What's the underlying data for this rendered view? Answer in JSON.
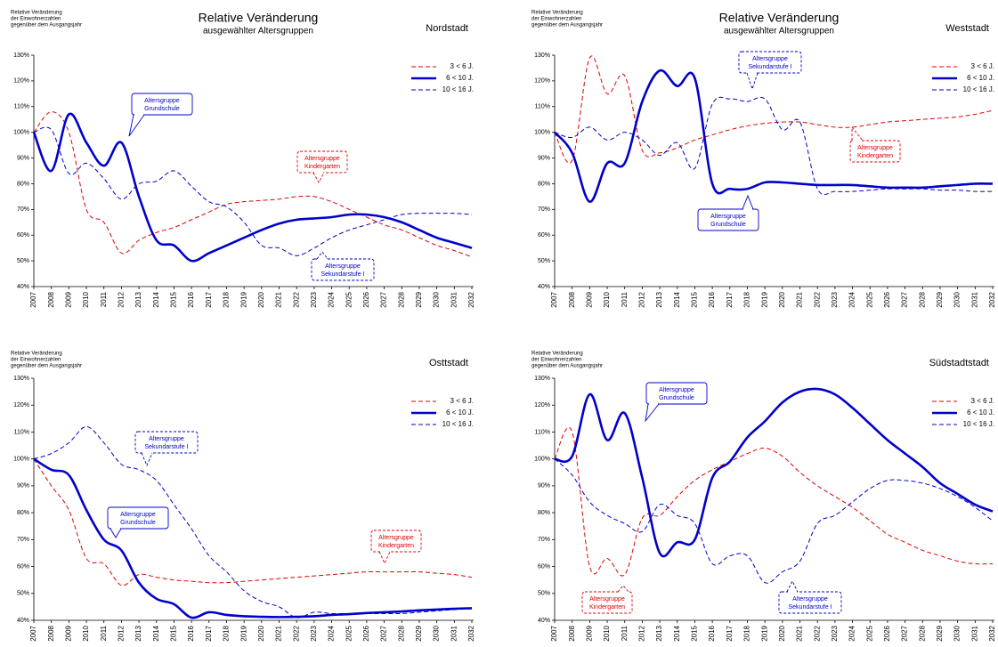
{
  "chart_data": [
    {
      "type": "line",
      "title": "Relative Veränderung",
      "subtitle": "ausgewählter Altersgruppen",
      "region": "Nordstadt",
      "y_label": [
        "Relative Veränderung",
        "der Einwohnerzahlen",
        "gegenüber dem Ausgangsjahr"
      ],
      "x": [
        2007,
        2008,
        2009,
        2010,
        2011,
        2012,
        2013,
        2014,
        2015,
        2016,
        2017,
        2018,
        2019,
        2020,
        2021,
        2022,
        2023,
        2024,
        2025,
        2026,
        2027,
        2028,
        2029,
        2030,
        2031,
        2032
      ],
      "xlim": [
        2007,
        2032
      ],
      "xticks": [
        2007,
        2008,
        2009,
        2010,
        2011,
        2012,
        2013,
        2014,
        2015,
        2016,
        2017,
        2018,
        2019,
        2020,
        2021,
        2022,
        2023,
        2024,
        2025,
        2026,
        2027,
        2028,
        2029,
        2030,
        2031,
        2032
      ],
      "ylim": [
        40,
        130
      ],
      "yticks": [
        {
          "value": 40,
          "label": "40%"
        },
        {
          "value": 50,
          "label": "50%"
        },
        {
          "value": 60,
          "label": "60%"
        },
        {
          "value": 70,
          "label": "70%"
        },
        {
          "value": 80,
          "label": "80%"
        },
        {
          "value": 90,
          "label": "90%"
        },
        {
          "value": 100,
          "label": "100%"
        },
        {
          "value": 110,
          "label": "110%"
        },
        {
          "value": 120,
          "label": "120%"
        },
        {
          "value": 130,
          "label": "130%"
        }
      ],
      "grid": false,
      "series": [
        {
          "name": "3  <  6 J.",
          "color": "#e00000",
          "style": "dashed",
          "values": [
            100,
            108,
            100,
            70,
            65,
            53,
            58,
            61,
            63,
            66,
            69,
            72,
            73,
            73.5,
            74,
            75,
            75,
            73,
            70,
            67,
            64,
            62,
            59,
            56,
            54,
            51.5
          ]
        },
        {
          "name": "6 < 10 J.",
          "color": "#0000cc",
          "style": "thick",
          "values": [
            100,
            85,
            107,
            96,
            87,
            96,
            75,
            58,
            56,
            50,
            53,
            56,
            59,
            62,
            64.5,
            66,
            66.5,
            67,
            68,
            68,
            67,
            65,
            62,
            59,
            57,
            55
          ]
        },
        {
          "name": "10 < 16 J.",
          "color": "#0000cc",
          "style": "dashed",
          "values": [
            100,
            101,
            84,
            88,
            82,
            74,
            80,
            81,
            85,
            79,
            73,
            71,
            65,
            56,
            55,
            52,
            55,
            59,
            62,
            64,
            66,
            68,
            68.5,
            68.5,
            68.5,
            68
          ]
        }
      ],
      "annotations": [
        {
          "lines": [
            "Altersgruppe",
            "Grundschule"
          ],
          "color": "#0000cc",
          "border": "solid"
        },
        {
          "lines": [
            "Altersgruppe",
            "Kindergarten"
          ],
          "color": "#e00000",
          "border": "dashed"
        },
        {
          "lines": [
            "Altersgruppe",
            "Sekundarstufe I"
          ],
          "color": "#0000cc",
          "border": "dashed"
        }
      ]
    },
    {
      "type": "line",
      "title": "Relative Veränderung",
      "subtitle": "ausgewählter Altersgruppen",
      "region": "Weststadt",
      "y_label": [
        "Relative Veränderung",
        "der Einwohnerzahlen",
        "gegenüber dem Ausgangsjahr"
      ],
      "x": [
        2007,
        2008,
        2009,
        2010,
        2011,
        2012,
        2013,
        2014,
        2015,
        2016,
        2017,
        2018,
        2019,
        2020,
        2021,
        2022,
        2023,
        2024,
        2025,
        2026,
        2027,
        2028,
        2029,
        2030,
        2031,
        2032
      ],
      "xlim": [
        2007,
        2032
      ],
      "xticks": [
        2007,
        2008,
        2009,
        2010,
        2011,
        2012,
        2013,
        2014,
        2015,
        2016,
        2017,
        2018,
        2019,
        2020,
        2021,
        2022,
        2023,
        2024,
        2025,
        2026,
        2027,
        2028,
        2029,
        2030,
        2031,
        2032
      ],
      "ylim": [
        40,
        130
      ],
      "yticks": [
        {
          "value": 40,
          "label": "40%"
        },
        {
          "value": 50,
          "label": "50%"
        },
        {
          "value": 60,
          "label": "60%"
        },
        {
          "value": 70,
          "label": "70%"
        },
        {
          "value": 80,
          "label": "80%"
        },
        {
          "value": 90,
          "label": "90%"
        },
        {
          "value": 100,
          "label": "100%"
        },
        {
          "value": 110,
          "label": "110%"
        },
        {
          "value": 120,
          "label": "120%"
        },
        {
          "value": 130,
          "label": "130%"
        }
      ],
      "grid": false,
      "series": [
        {
          "name": "3  <  6 J.",
          "color": "#e00000",
          "style": "dashed",
          "values": [
            100,
            89,
            129,
            115,
            122,
            93,
            92,
            94,
            97,
            99,
            101,
            102.5,
            103.5,
            104,
            104,
            103,
            102,
            102,
            103,
            104,
            104.5,
            105,
            105.5,
            106,
            107,
            108.5
          ]
        },
        {
          "name": "6 < 10 J.",
          "color": "#0000cc",
          "style": "thick",
          "values": [
            100,
            92,
            73,
            88,
            88,
            112,
            124,
            118,
            121,
            80,
            78,
            78,
            80.5,
            80.5,
            80,
            79.5,
            79.5,
            79.5,
            79,
            78.5,
            78.5,
            78.5,
            79,
            79.5,
            80,
            80
          ]
        },
        {
          "name": "10 < 16 J.",
          "color": "#0000cc",
          "style": "dashed",
          "values": [
            100,
            98,
            102,
            97,
            100,
            97,
            91,
            96,
            86,
            111,
            113,
            112,
            113,
            101,
            104,
            78,
            77,
            77,
            77.5,
            78,
            78,
            78,
            77.5,
            77.5,
            77,
            77
          ]
        }
      ],
      "annotations": [
        {
          "lines": [
            "Altersgruppe",
            "Sekundarstufe I"
          ],
          "color": "#0000cc",
          "border": "dashed"
        },
        {
          "lines": [
            "Altersgruppe",
            "Kindergarten"
          ],
          "color": "#e00000",
          "border": "dashed"
        },
        {
          "lines": [
            "Altersgruppe",
            "Grundschule"
          ],
          "color": "#0000cc",
          "border": "solid"
        }
      ]
    },
    {
      "type": "line",
      "region": "Osttstadt",
      "y_label": [
        "Relative Veränderung",
        "der Einwohnerzahlen",
        "gegenüber dem Ausgangsjahr"
      ],
      "x": [
        2007,
        2008,
        2009,
        2010,
        2011,
        2012,
        2013,
        2014,
        2015,
        2016,
        2017,
        2018,
        2019,
        2020,
        2021,
        2022,
        2023,
        2024,
        2025,
        2026,
        2027,
        2028,
        2029,
        2030,
        2031,
        2032
      ],
      "xlim": [
        2007,
        2032
      ],
      "xticks": [
        2007,
        2008,
        2009,
        2010,
        2011,
        2012,
        2013,
        2014,
        2015,
        2016,
        2017,
        2018,
        2019,
        2020,
        2021,
        2022,
        2023,
        2024,
        2025,
        2026,
        2027,
        2028,
        2029,
        2030,
        2031,
        2032
      ],
      "ylim": [
        40,
        130
      ],
      "yticks": [
        {
          "value": 40,
          "label": "40%"
        },
        {
          "value": 50,
          "label": "50%"
        },
        {
          "value": 60,
          "label": "60%"
        },
        {
          "value": 70,
          "label": "70%"
        },
        {
          "value": 80,
          "label": "80%"
        },
        {
          "value": 90,
          "label": "90%"
        },
        {
          "value": 100,
          "label": "100%"
        },
        {
          "value": 110,
          "label": "110%"
        },
        {
          "value": 120,
          "label": "120%"
        },
        {
          "value": 130,
          "label": "130%"
        }
      ],
      "grid": false,
      "series": [
        {
          "name": "3  <  6 J.",
          "color": "#e00000",
          "style": "dashed",
          "values": [
            100,
            90,
            81,
            63,
            61,
            53,
            57,
            56,
            55,
            54.5,
            54,
            54,
            54.5,
            55,
            55.5,
            56,
            56.5,
            57,
            57.5,
            58,
            58,
            58,
            58,
            57.5,
            57,
            56
          ]
        },
        {
          "name": "6 < 10 J.",
          "color": "#0000cc",
          "style": "thick",
          "values": [
            100,
            96,
            94,
            81,
            70,
            66,
            54,
            48,
            46,
            41,
            43,
            42,
            41.5,
            41.3,
            41.2,
            41.3,
            41.5,
            42,
            42.3,
            42.7,
            43,
            43.3,
            43.7,
            44,
            44.3,
            44.5
          ]
        },
        {
          "name": "10 < 16 J.",
          "color": "#0000cc",
          "style": "dashed",
          "values": [
            100,
            102,
            106,
            112,
            106,
            98,
            96,
            92,
            83,
            74,
            64,
            58,
            51,
            47,
            45,
            41,
            43,
            42.5,
            42.5,
            42.5,
            42.5,
            42.5,
            43,
            43.5,
            44,
            44.5
          ]
        }
      ],
      "annotations": [
        {
          "lines": [
            "Altersgruppe",
            "Sekundarstufe I"
          ],
          "color": "#0000cc",
          "border": "dashed"
        },
        {
          "lines": [
            "Altersgruppe",
            "Grundschule"
          ],
          "color": "#0000cc",
          "border": "solid"
        },
        {
          "lines": [
            "Altersgruppe",
            "Kindergarten"
          ],
          "color": "#e00000",
          "border": "dashed"
        }
      ]
    },
    {
      "type": "line",
      "region": "Südstadtstadt",
      "y_label": [
        "Relative Veränderung",
        "der Einwohnerzahlen",
        "gegenüber dem Ausgangsjahr"
      ],
      "x": [
        2007,
        2008,
        2009,
        2010,
        2011,
        2012,
        2013,
        2014,
        2015,
        2016,
        2017,
        2018,
        2019,
        2020,
        2021,
        2022,
        2023,
        2024,
        2025,
        2026,
        2027,
        2028,
        2029,
        2030,
        2031,
        2032
      ],
      "xlim": [
        2007,
        2032
      ],
      "xticks": [
        2007,
        2008,
        2009,
        2010,
        2011,
        2012,
        2013,
        2014,
        2015,
        2016,
        2017,
        2018,
        2019,
        2020,
        2021,
        2022,
        2023,
        2024,
        2025,
        2026,
        2027,
        2028,
        2029,
        2030,
        2031,
        2032
      ],
      "ylim": [
        40,
        130
      ],
      "yticks": [
        {
          "value": 40,
          "label": "40%"
        },
        {
          "value": 50,
          "label": "50%"
        },
        {
          "value": 60,
          "label": "60%"
        },
        {
          "value": 70,
          "label": "70%"
        },
        {
          "value": 80,
          "label": "80%"
        },
        {
          "value": 90,
          "label": "90%"
        },
        {
          "value": 100,
          "label": "100%"
        },
        {
          "value": 110,
          "label": "110%"
        },
        {
          "value": 120,
          "label": "120%"
        },
        {
          "value": 130,
          "label": "130%"
        }
      ],
      "grid": false,
      "series": [
        {
          "name": "3  <  6 J.",
          "color": "#e00000",
          "style": "dashed",
          "values": [
            100,
            110,
            60,
            63,
            57,
            78,
            79,
            86,
            92,
            96,
            99,
            102,
            104,
            101,
            95,
            90,
            86,
            82,
            77,
            72,
            69,
            66,
            64,
            62,
            61,
            61
          ]
        },
        {
          "name": "6 < 10 J.",
          "color": "#0000cc",
          "style": "thick",
          "values": [
            100,
            101,
            124,
            107,
            117,
            93,
            65,
            69,
            70,
            93,
            99,
            108,
            114,
            121,
            125,
            126,
            124,
            119,
            113,
            107,
            102,
            97,
            91,
            87,
            83,
            80.5
          ]
        },
        {
          "name": "10 < 16 J.",
          "color": "#0000cc",
          "style": "dashed",
          "values": [
            100,
            94,
            84,
            79,
            76,
            73,
            83,
            79,
            76,
            61,
            64,
            64,
            54,
            58,
            62,
            76,
            79,
            84,
            89,
            92,
            92,
            91,
            89,
            86,
            82,
            77
          ]
        }
      ],
      "annotations": [
        {
          "lines": [
            "Altersgruppe",
            "Grundschule"
          ],
          "color": "#0000cc",
          "border": "solid"
        },
        {
          "lines": [
            "Altersgruppe",
            "Kindergarten"
          ],
          "color": "#e00000",
          "border": "dashed"
        },
        {
          "lines": [
            "Altersgruppe",
            "Sekundarstufe I"
          ],
          "color": "#0000cc",
          "border": "dashed"
        }
      ]
    }
  ]
}
